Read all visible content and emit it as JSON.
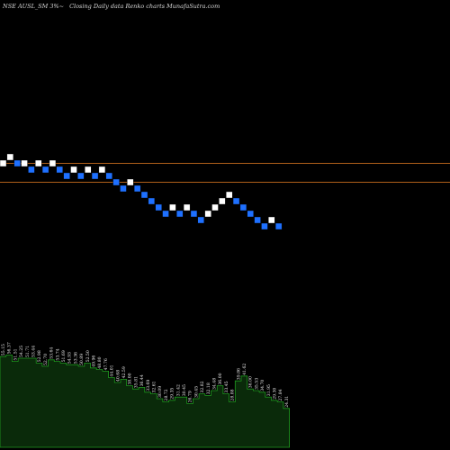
{
  "chart_data": {
    "type": "bar",
    "title": "NSE AUSL_SM 3%~  Closing Daily data  Renko  charts MunafaSutra.com",
    "title_parts": {
      "symbol": "NSE AUSL_SM 3%~",
      "desc": "Closing Daily data  Renko  charts",
      "site": "MunafaSutra.com"
    },
    "renko": {
      "bricks": [
        {
          "dir": "up",
          "level": 5
        },
        {
          "dir": "up",
          "level": 6
        },
        {
          "dir": "down",
          "level": 5
        },
        {
          "dir": "up",
          "level": 5
        },
        {
          "dir": "down",
          "level": 4
        },
        {
          "dir": "up",
          "level": 5
        },
        {
          "dir": "down",
          "level": 4
        },
        {
          "dir": "up",
          "level": 5
        },
        {
          "dir": "down",
          "level": 4
        },
        {
          "dir": "down",
          "level": 3
        },
        {
          "dir": "up",
          "level": 4
        },
        {
          "dir": "down",
          "level": 3
        },
        {
          "dir": "up",
          "level": 4
        },
        {
          "dir": "down",
          "level": 3
        },
        {
          "dir": "up",
          "level": 4
        },
        {
          "dir": "down",
          "level": 3
        },
        {
          "dir": "down",
          "level": 2
        },
        {
          "dir": "down",
          "level": 1
        },
        {
          "dir": "up",
          "level": 2
        },
        {
          "dir": "down",
          "level": 1
        },
        {
          "dir": "down",
          "level": 0
        },
        {
          "dir": "down",
          "level": -1
        },
        {
          "dir": "down",
          "level": -2
        },
        {
          "dir": "down",
          "level": -3
        },
        {
          "dir": "up",
          "level": -2
        },
        {
          "dir": "down",
          "level": -3
        },
        {
          "dir": "up",
          "level": -2
        },
        {
          "dir": "down",
          "level": -3
        },
        {
          "dir": "down",
          "level": -4
        },
        {
          "dir": "up",
          "level": -3
        },
        {
          "dir": "up",
          "level": -2
        },
        {
          "dir": "up",
          "level": -1
        },
        {
          "dir": "up",
          "level": 0
        },
        {
          "dir": "down",
          "level": -1
        },
        {
          "dir": "down",
          "level": -2
        },
        {
          "dir": "down",
          "level": -3
        },
        {
          "dir": "down",
          "level": -4
        },
        {
          "dir": "down",
          "level": -5
        },
        {
          "dir": "up",
          "level": -4
        },
        {
          "dir": "down",
          "level": -5
        }
      ],
      "resistance_levels": [
        5,
        2
      ],
      "colors": {
        "up": "#ffffff",
        "down": "#1e70ff",
        "line": "#b0601a"
      }
    },
    "volume": {
      "values": [
        56,
        57,
        53,
        55,
        55,
        55,
        52,
        50,
        54,
        53,
        52,
        51,
        51,
        50,
        52,
        49,
        48,
        47,
        43,
        40,
        42,
        38,
        36,
        37,
        34,
        33,
        30,
        28,
        29,
        31,
        31,
        27,
        30,
        33,
        32,
        35,
        38,
        33,
        28,
        41,
        44,
        36,
        35,
        34,
        31,
        29,
        28,
        24
      ],
      "labels": [
        "55.15",
        "56.37",
        "51.51",
        "54.25",
        "51.71",
        "53.44",
        "52.98",
        "52.70",
        "53.64",
        "53.74",
        "51.69",
        "54.93",
        "53.36",
        "50.89",
        "52.50",
        "49.96",
        "48.80",
        "47.76",
        "44.01",
        "40.68",
        "42.59",
        "38.00",
        "35.81",
        "36.44",
        "33.69",
        "32.61",
        "30.09",
        "28.72",
        "29.35",
        "31.42",
        "30.45",
        "26.79",
        "30.45",
        "32.82",
        "32.18",
        "34.48",
        "36.00",
        "33.45",
        "28.88",
        "39.86",
        "41.62",
        "36.00",
        "35.53",
        "34.70",
        "31.95",
        "29.30",
        "27.84",
        "24.31"
      ],
      "fill": "#0a2a0a",
      "line": "#1f9a1f",
      "ylim": [
        0,
        140
      ]
    }
  }
}
